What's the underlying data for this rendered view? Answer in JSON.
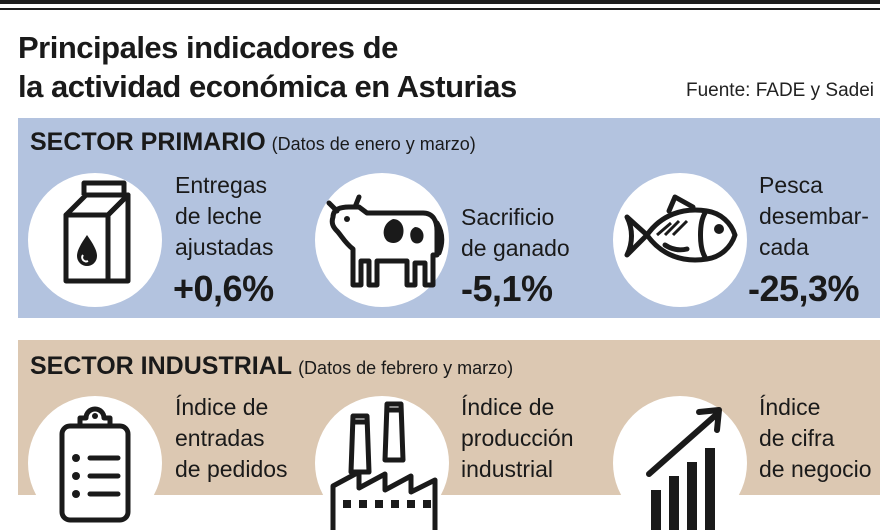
{
  "title_line1": "Principales indicadores de",
  "title_line2": "la actividad económica en Asturias",
  "source": "Fuente: FADE y Sadei",
  "primary": {
    "heading": "SECTOR PRIMARIO",
    "note": "(Datos de enero y marzo)",
    "items": [
      {
        "icon": "milk-carton-icon",
        "label": [
          "Entregas",
          "de leche",
          "ajustadas"
        ],
        "value": "+0,6%"
      },
      {
        "icon": "cow-icon",
        "label": [
          "Sacrificio",
          "de ganado"
        ],
        "value": "-5,1%"
      },
      {
        "icon": "fish-icon",
        "label": [
          "Pesca",
          "desembar-",
          "cada"
        ],
        "value": "-25,3%"
      }
    ]
  },
  "industrial": {
    "heading": "SECTOR INDUSTRIAL",
    "note": "(Datos de febrero y marzo)",
    "items": [
      {
        "icon": "clipboard-list-icon",
        "label": [
          "Índice de",
          "entradas",
          "de pedidos"
        ]
      },
      {
        "icon": "factory-icon",
        "label": [
          "Índice de",
          "producción",
          "industrial"
        ]
      },
      {
        "icon": "rising-chart-icon",
        "label": [
          "Índice",
          "de cifra",
          "de negocio"
        ]
      }
    ]
  },
  "colors": {
    "primary_panel": "#b3c3df",
    "industrial_panel": "#dcc8b2",
    "icon_stroke": "#1a1a1a"
  }
}
